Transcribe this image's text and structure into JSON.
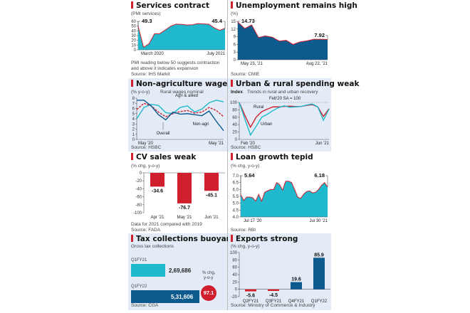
{
  "colors": {
    "accent_red": "#d0202e",
    "teal": "#1fb8cc",
    "navy": "#0d5a8f",
    "panel_blue": "#e3ecf6"
  },
  "panels": {
    "services": {
      "title": "Services contract",
      "subtitle": "(PMI services)",
      "note1": "PMI reading below 50 suggests contraction",
      "note2": "and above it indicates expansion",
      "source": "Source: IHS Markit",
      "first_label": "49.3",
      "last_label": "45.4"
    },
    "unemployment": {
      "title": "Unemployment remains high",
      "subtitle": "(%)",
      "source": "Source: CMIE",
      "first_label": "14.73",
      "last_label": "7.92"
    },
    "wages": {
      "title": "Non-agriculture wages falling",
      "subtitle": "(% y-o-y)",
      "subtitle2": "Rural wages nominal",
      "label_agri": "Agri & allied",
      "label_nonagri": "Non-agri",
      "label_overall": "Overall",
      "source": "Source: HSBC"
    },
    "spending": {
      "title": "Urban & rural spending weak",
      "subtitle_bold": "Index",
      "subtitle": "Trends in rural and urban recovery",
      "baseline_label": "Feb'20 SA = 100",
      "label_rural": "Rural",
      "label_urban": "Urban",
      "source": "Source: HSBC"
    },
    "cv": {
      "title": "CV sales weak",
      "subtitle": "(% chg, y-o-y)",
      "note": "Data for 2021 compared with 2019",
      "source": "Source: FADA"
    },
    "loan": {
      "title": "Loan growth tepid",
      "subtitle": "(% chg, y-o-y)",
      "source": "Source: RBI",
      "first_label": "5.64",
      "last_label": "6.18"
    },
    "tax": {
      "title": "Tax collections buoyant",
      "subtitle": "Gross tax collections",
      "label1": "Q1FY21",
      "value1": "2,69,686",
      "label2": "Q1FY22",
      "value2": "5,31,606",
      "chg_label1": "% chg,",
      "chg_label2": "y-o-y",
      "chg_value": "97.1",
      "source": "Source: CGA"
    },
    "exports": {
      "title": "Exports strong",
      "subtitle": "(% chg, y-o-y)",
      "source": "Source: Ministry of Commerce & Industry"
    }
  },
  "chart_data": [
    {
      "id": "services",
      "type": "area",
      "title": "Services contract",
      "ylabel": "PMI services",
      "ylim": [
        0,
        60
      ],
      "yticks": [
        0,
        10,
        20,
        30,
        40,
        50,
        60
      ],
      "xlabels": [
        "March 2020",
        "July 2021"
      ],
      "values": [
        49.3,
        5.4,
        12.6,
        33.7,
        34.2,
        41.8,
        49.8,
        54.1,
        53.7,
        52.3,
        52.8,
        55.3,
        54.6,
        54.0,
        46.4,
        41.2,
        45.4
      ]
    },
    {
      "id": "unemployment",
      "type": "area",
      "title": "Unemployment remains high",
      "ylabel": "%",
      "ylim": [
        0,
        15
      ],
      "yticks": [
        0,
        3,
        6,
        9,
        12,
        15
      ],
      "xlabels": [
        "May 23, '21",
        "Aug 22, '21"
      ],
      "values": [
        14.73,
        12.2,
        13.6,
        8.7,
        9.3,
        8.8,
        7.3,
        7.6,
        6.0,
        7.0,
        7.4,
        8.0,
        8.0,
        7.92
      ]
    },
    {
      "id": "wages",
      "type": "line",
      "title": "Non-agriculture wages falling",
      "ylabel": "% y-o-y",
      "ylim": [
        0,
        8
      ],
      "yticks": [
        0,
        1,
        2,
        3,
        4,
        5,
        6,
        7,
        8
      ],
      "xlabels": [
        "May '20",
        "May '21"
      ],
      "series": [
        {
          "name": "Agri & allied",
          "color": "#1fb8cc",
          "values": [
            4.0,
            6.2,
            6.8,
            6.6,
            5.2,
            5.0,
            6.2,
            6.5,
            5.3,
            5.9,
            7.1,
            7.6,
            7.3
          ]
        },
        {
          "name": "Overall",
          "color": "#d0202e",
          "dashed": true,
          "values": [
            5.8,
            7.0,
            6.5,
            5.3,
            4.4,
            5.0,
            5.4,
            5.6,
            5.1,
            5.3,
            6.2,
            5.6,
            4.4
          ]
        },
        {
          "name": "Non-agri",
          "color": "#0d5a8f",
          "values": [
            7.6,
            7.6,
            6.5,
            4.8,
            3.8,
            5.3,
            4.9,
            5.0,
            4.8,
            4.6,
            5.5,
            3.5,
            1.7
          ]
        }
      ]
    },
    {
      "id": "spending",
      "type": "line",
      "title": "Urban & rural spending weak",
      "ylabel": "Index",
      "ylim": [
        0,
        100
      ],
      "yticks": [
        0,
        20,
        40,
        60,
        80,
        100
      ],
      "xlabels": [
        "Feb '20",
        "Jun '21"
      ],
      "series": [
        {
          "name": "Rural",
          "color": "#d0202e",
          "values": [
            100,
            65,
            33,
            60,
            75,
            82,
            88,
            88,
            89,
            90,
            89,
            89,
            92,
            94,
            88,
            62,
            83
          ]
        },
        {
          "name": "Urban",
          "color": "#1fb8cc",
          "values": [
            100,
            55,
            12,
            35,
            60,
            68,
            78,
            86,
            91,
            87,
            88,
            89,
            93,
            96,
            88,
            52,
            82
          ]
        }
      ]
    },
    {
      "id": "cv",
      "type": "bar",
      "title": "CV sales weak",
      "ylabel": "% chg, y-o-y",
      "ylim": [
        -100,
        0
      ],
      "yticks": [
        0,
        -20,
        -40,
        -60,
        -80,
        -100
      ],
      "categories": [
        "Apr '21",
        "May '21",
        "Jun '21"
      ],
      "values": [
        -34.6,
        -76.7,
        -45.1
      ]
    },
    {
      "id": "loan",
      "type": "area",
      "title": "Loan growth tepid",
      "ylabel": "% chg, y-o-y",
      "ylim": [
        4.0,
        7.0
      ],
      "yticks": [
        4.0,
        4.5,
        5.0,
        5.5,
        6.0,
        6.5,
        7.0
      ],
      "xlabels": [
        "Jul 17 '20",
        "Jul 30 '21"
      ],
      "values": [
        5.64,
        5.2,
        5.45,
        5.45,
        5.4,
        5.15,
        5.65,
        5.15,
        5.8,
        5.9,
        6.0,
        6.0,
        6.5,
        6.35,
        5.95,
        6.6,
        6.6,
        6.5,
        6.0,
        5.45,
        5.35,
        5.65,
        5.85,
        5.9,
        5.75,
        5.8,
        6.0,
        6.3,
        6.5,
        6.18
      ]
    },
    {
      "id": "tax",
      "type": "bar",
      "orientation": "horizontal",
      "title": "Tax collections buoyant",
      "categories": [
        "Q1FY21",
        "Q1FY22"
      ],
      "values": [
        269686,
        531606
      ],
      "annotation": "% chg, y-o-y 97.1"
    },
    {
      "id": "exports",
      "type": "bar",
      "title": "Exports strong",
      "ylabel": "% chg, y-o-y",
      "ylim": [
        -20,
        100
      ],
      "yticks": [
        -20,
        0,
        20,
        40,
        60,
        80,
        100
      ],
      "categories": [
        "Q2FY21",
        "Q3FY21",
        "Q4FY21",
        "Q1FY22"
      ],
      "values": [
        -5.6,
        -4.5,
        19.6,
        85.9
      ]
    }
  ]
}
